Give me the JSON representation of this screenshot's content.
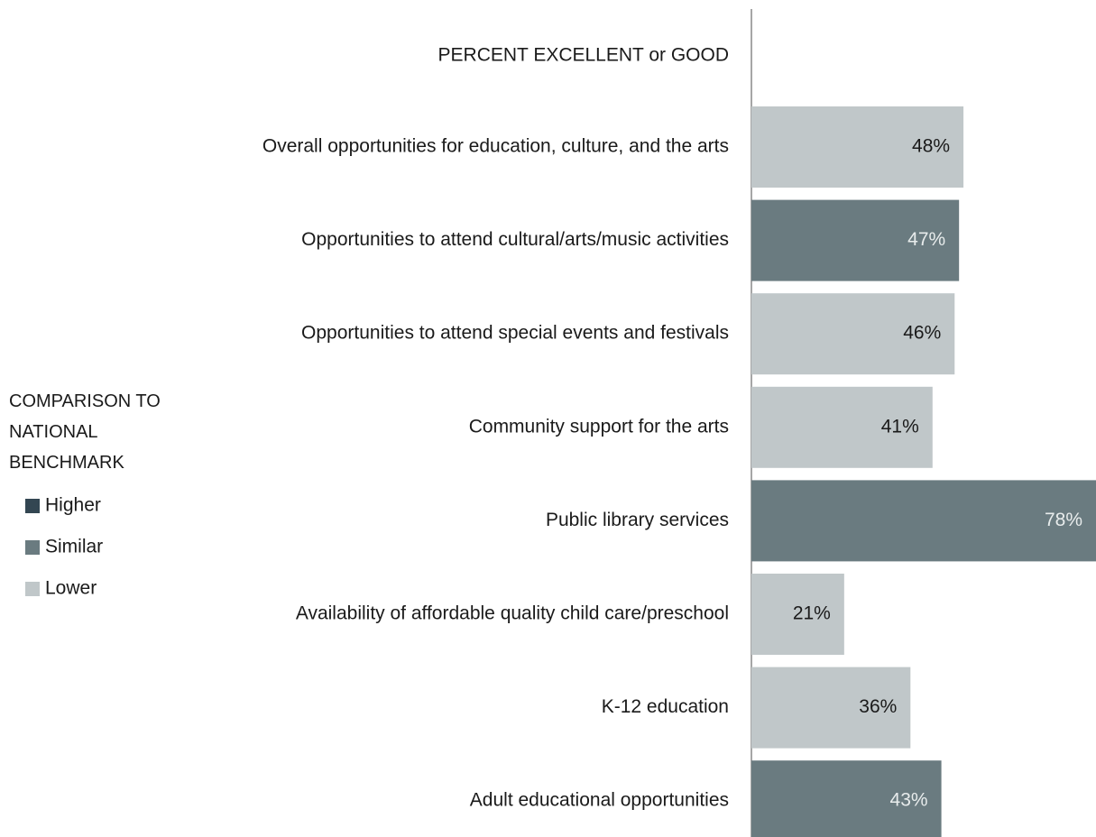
{
  "chart_data": {
    "type": "hbar",
    "header": "PERCENT EXCELLENT or GOOD",
    "categories": [
      "Overall opportunities for education, culture, and the arts",
      "Opportunities to attend cultural/arts/music activities",
      "Opportunities to attend special events and festivals",
      "Community support for the arts",
      "Public library services",
      "Availability of affordable quality child care/preschool",
      "K-12 education",
      "Adult educational opportunities"
    ],
    "values": [
      48,
      47,
      46,
      41,
      78,
      21,
      36,
      43
    ],
    "value_labels": [
      "48%",
      "47%",
      "46%",
      "41%",
      "78%",
      "21%",
      "36%",
      "43%"
    ],
    "colors": [
      "#c0c7c9",
      "#6a7b80",
      "#c0c7c9",
      "#c0c7c9",
      "#6a7b80",
      "#c0c7c9",
      "#c0c7c9",
      "#6a7b80"
    ],
    "xlim": [
      0,
      78
    ],
    "legend": {
      "title": "COMPARISON TO NATIONAL BENCHMARK",
      "items": [
        {
          "name": "Higher",
          "color": "#334652"
        },
        {
          "name": "Similar",
          "color": "#6a7b80"
        },
        {
          "name": "Lower",
          "color": "#c0c7c9"
        }
      ]
    }
  }
}
